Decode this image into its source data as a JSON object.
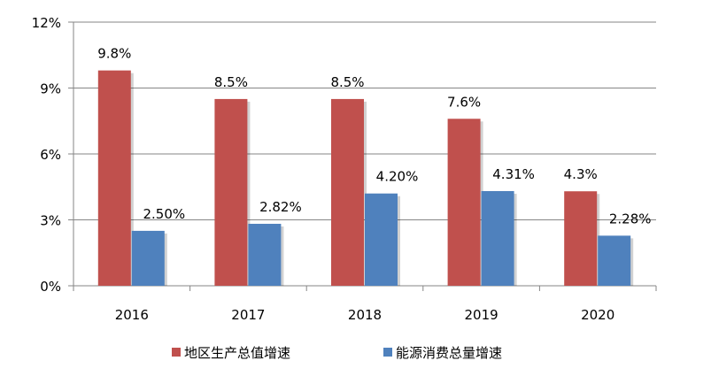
{
  "chart_data": {
    "type": "bar",
    "categories": [
      "2016",
      "2017",
      "2018",
      "2019",
      "2020"
    ],
    "series": [
      {
        "name": "地区生产总值增速",
        "values": [
          9.8,
          8.5,
          8.5,
          7.6,
          4.3
        ],
        "labels": [
          "9.8%",
          "8.5%",
          "8.5%",
          "7.6%",
          "4.3%"
        ],
        "color": "#C0504D"
      },
      {
        "name": "能源消费总量增速",
        "values": [
          2.5,
          2.82,
          4.2,
          4.31,
          2.28
        ],
        "labels": [
          "2.50%",
          "2.82%",
          "4.20%",
          "4.31%",
          "2.28%"
        ],
        "color": "#4F81BD"
      }
    ],
    "ylim": [
      0,
      12
    ],
    "yticks": [
      0,
      3,
      6,
      9,
      12
    ],
    "ytick_labels": [
      "0%",
      "3%",
      "6%",
      "9%",
      "12%"
    ],
    "grid": true,
    "legend": "bottom",
    "title": "",
    "xlabel": "",
    "ylabel": ""
  }
}
